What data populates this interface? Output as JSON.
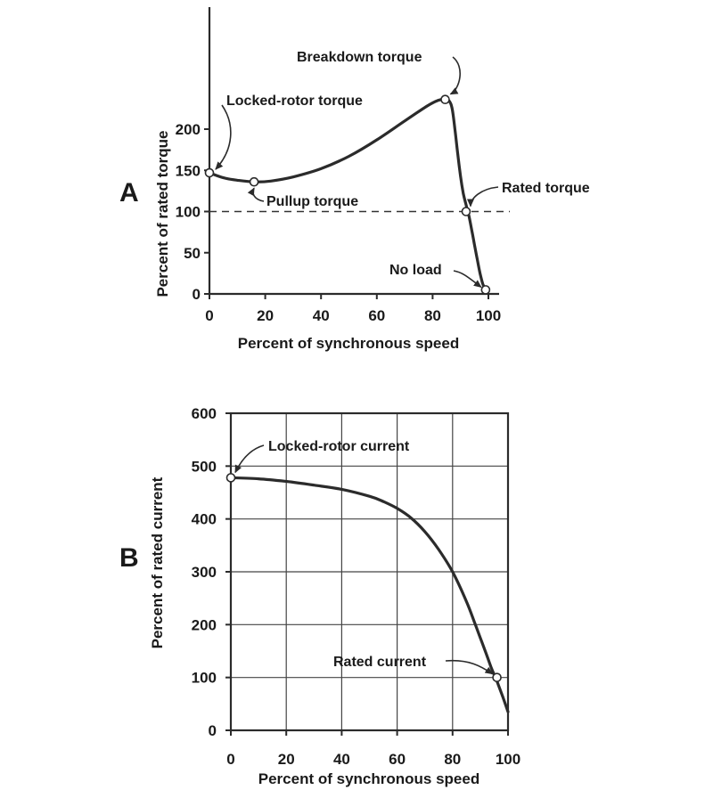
{
  "chart_data": [
    {
      "panel": "A",
      "type": "line",
      "xlabel": "Percent of synchronous speed",
      "ylabel": "Percent of rated torque",
      "xlim": [
        0,
        100
      ],
      "ylim": [
        0,
        250
      ],
      "xticks": [
        "0",
        "20",
        "40",
        "60",
        "80",
        "100"
      ],
      "yticks": [
        "0",
        "50",
        "100",
        "150",
        "200"
      ],
      "grid": false,
      "reference_line": {
        "y": 100,
        "style": "dashed"
      },
      "series": [
        {
          "x": [
            0,
            5,
            10,
            16,
            22,
            30,
            40,
            50,
            60,
            70,
            78,
            82,
            84.5,
            86,
            87,
            88,
            89,
            90,
            91,
            92,
            93,
            94,
            95,
            96,
            97,
            98,
            99
          ],
          "y": [
            147,
            141,
            138,
            136,
            137,
            142,
            152,
            167,
            187,
            210,
            228,
            235,
            236,
            234,
            225,
            200,
            170,
            143,
            122,
            108,
            95,
            78,
            60,
            42,
            25,
            12,
            5
          ]
        }
      ],
      "points": [
        {
          "label": "Locked-rotor torque",
          "x": 0,
          "y": 147
        },
        {
          "label": "Pullup torque",
          "x": 16,
          "y": 136
        },
        {
          "label": "Breakdown torque",
          "x": 84.5,
          "y": 236
        },
        {
          "label": "Rated torque",
          "x": 92,
          "y": 100
        },
        {
          "label": "No load",
          "x": 99,
          "y": 5
        }
      ]
    },
    {
      "panel": "B",
      "type": "line",
      "xlabel": "Percent of synchronous speed",
      "ylabel": "Percent of rated current",
      "xlim": [
        0,
        100
      ],
      "ylim": [
        0,
        600
      ],
      "xticks": [
        "0",
        "20",
        "40",
        "60",
        "80",
        "100"
      ],
      "yticks": [
        "0",
        "100",
        "200",
        "300",
        "400",
        "500",
        "600"
      ],
      "grid": true,
      "series": [
        {
          "x": [
            0,
            10,
            20,
            30,
            40,
            50,
            55,
            60,
            65,
            70,
            75,
            80,
            85,
            88,
            90,
            92,
            94,
            96,
            98,
            100
          ],
          "y": [
            478,
            476,
            471,
            464,
            456,
            443,
            433,
            420,
            402,
            376,
            342,
            300,
            244,
            203,
            175,
            147,
            118,
            93,
            65,
            35
          ]
        }
      ],
      "points": [
        {
          "label": "Locked-rotor current",
          "x": 0,
          "y": 478
        },
        {
          "label": "Rated current",
          "x": 96,
          "y": 100
        }
      ]
    }
  ],
  "panels": {
    "a_letter": "A",
    "b_letter": "B"
  }
}
